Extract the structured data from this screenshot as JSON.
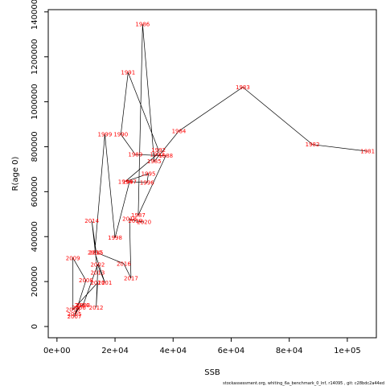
{
  "chart_data": {
    "type": "line",
    "xlabel": "SSB",
    "ylabel": "R(age 0)",
    "xlim": [
      -3000,
      110000
    ],
    "ylim": [
      -50000,
      1410000
    ],
    "x_ticks": [
      {
        "value": 0,
        "label": "0e+00"
      },
      {
        "value": 20000,
        "label": "2e+04"
      },
      {
        "value": 40000,
        "label": "4e+04"
      },
      {
        "value": 60000,
        "label": "6e+04"
      },
      {
        "value": 80000,
        "label": "8e+04"
      },
      {
        "value": 100000,
        "label": "1e+05"
      }
    ],
    "y_ticks": [
      {
        "value": 0,
        "label": "0"
      },
      {
        "value": 200000,
        "label": "200000"
      },
      {
        "value": 400000,
        "label": "400000"
      },
      {
        "value": 600000,
        "label": "600000"
      },
      {
        "value": 800000,
        "label": "800000"
      },
      {
        "value": 1000000,
        "label": "1000000"
      },
      {
        "value": 1200000,
        "label": "1200000"
      },
      {
        "value": 1400000,
        "label": "1400000"
      }
    ],
    "line_color": "#000000",
    "label_color": "#ff0000",
    "points": [
      {
        "year": "1981",
        "x": 107000,
        "y": 780000
      },
      {
        "year": "1982",
        "x": 88000,
        "y": 810000
      },
      {
        "year": "1983",
        "x": 64000,
        "y": 1065000
      },
      {
        "year": "1984",
        "x": 42000,
        "y": 870000
      },
      {
        "year": "1985",
        "x": 33500,
        "y": 735000
      },
      {
        "year": "1986",
        "x": 29500,
        "y": 1345000
      },
      {
        "year": "1987",
        "x": 28000,
        "y": 495000
      },
      {
        "year": "1988",
        "x": 37500,
        "y": 760000
      },
      {
        "year": "1989",
        "x": 27000,
        "y": 765000
      },
      {
        "year": "1990",
        "x": 22000,
        "y": 855000
      },
      {
        "year": "1991",
        "x": 24500,
        "y": 1130000
      },
      {
        "year": "1992",
        "x": 35000,
        "y": 785000
      },
      {
        "year": "1993",
        "x": 34500,
        "y": 765000
      },
      {
        "year": "1994",
        "x": 23500,
        "y": 645000
      },
      {
        "year": "1995",
        "x": 31500,
        "y": 680000
      },
      {
        "year": "1996",
        "x": 31000,
        "y": 640000
      },
      {
        "year": "1997",
        "x": 25000,
        "y": 645000
      },
      {
        "year": "1998",
        "x": 20000,
        "y": 395000
      },
      {
        "year": "1999",
        "x": 16500,
        "y": 855000
      },
      {
        "year": "2000",
        "x": 13000,
        "y": 330000
      },
      {
        "year": "2001",
        "x": 16500,
        "y": 195000
      },
      {
        "year": "2002",
        "x": 14000,
        "y": 275000
      },
      {
        "year": "2003",
        "x": 9000,
        "y": 95000
      },
      {
        "year": "2004",
        "x": 8500,
        "y": 95000
      },
      {
        "year": "2005",
        "x": 6000,
        "y": 55000
      },
      {
        "year": "2006",
        "x": 7500,
        "y": 85000
      },
      {
        "year": "2007",
        "x": 6000,
        "y": 45000
      },
      {
        "year": "2008",
        "x": 10000,
        "y": 205000
      },
      {
        "year": "2009",
        "x": 5500,
        "y": 305000
      },
      {
        "year": "2010",
        "x": 5500,
        "y": 75000
      },
      {
        "year": "2011",
        "x": 14000,
        "y": 195000
      },
      {
        "year": "2012",
        "x": 13500,
        "y": 85000
      },
      {
        "year": "2013",
        "x": 14000,
        "y": 240000
      },
      {
        "year": "2014",
        "x": 12000,
        "y": 470000
      },
      {
        "year": "2015",
        "x": 13500,
        "y": 330000
      },
      {
        "year": "2016",
        "x": 23000,
        "y": 280000
      },
      {
        "year": "2017",
        "x": 25500,
        "y": 215000
      },
      {
        "year": "2018",
        "x": 25000,
        "y": 480000
      },
      {
        "year": "2019",
        "x": 27000,
        "y": 470000
      },
      {
        "year": "2020",
        "x": 30000,
        "y": 465000
      }
    ],
    "footer": "stockassessment.org, whiting_6a_benchmark_0_lnf, r14095 , git: c28bdc2a44ed"
  }
}
